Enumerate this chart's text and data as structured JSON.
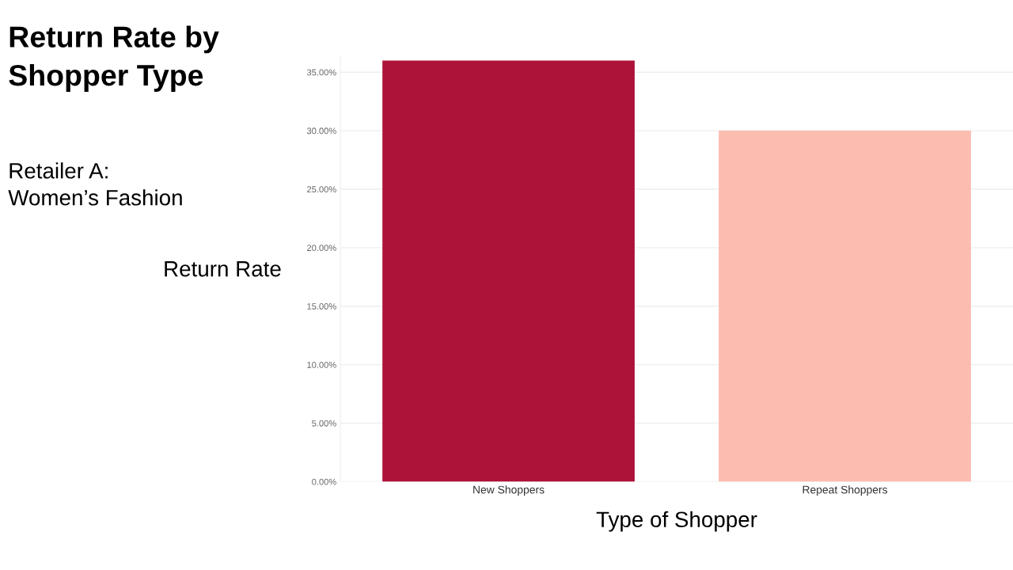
{
  "chart_data": {
    "type": "bar",
    "title": "Return Rate by\nShopper Type",
    "subtitle": "Retailer A:\nWomen’s Fashion",
    "xlabel": "Type of Shopper",
    "ylabel": "Return Rate",
    "categories": [
      "New Shoppers",
      "Repeat Shoppers"
    ],
    "values": [
      36,
      30
    ],
    "colors": [
      "#ad1238",
      "#fdbcb0"
    ],
    "ylim": [
      0,
      36.3
    ],
    "yticks": [
      {
        "value": 0,
        "label": "0.00%"
      },
      {
        "value": 5,
        "label": "5.00%"
      },
      {
        "value": 10,
        "label": "10.00%"
      },
      {
        "value": 15,
        "label": "15.00%"
      },
      {
        "value": 20,
        "label": "20.00%"
      },
      {
        "value": 25,
        "label": "25.00%"
      },
      {
        "value": 30,
        "label": "30.00%"
      },
      {
        "value": 35,
        "label": "35.00%"
      }
    ],
    "grid": "y"
  }
}
